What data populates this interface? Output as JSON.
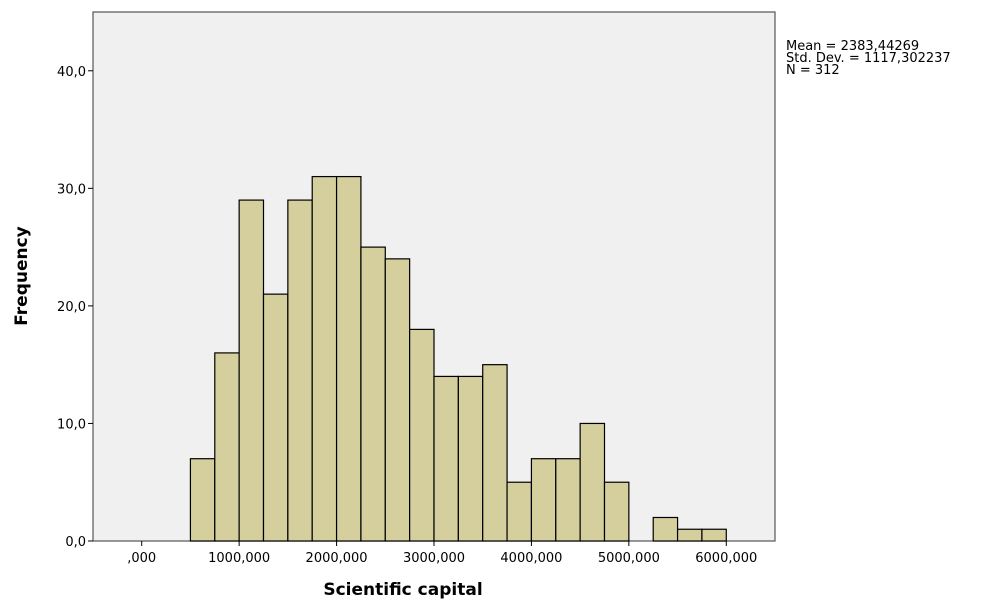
{
  "chart_data": {
    "type": "bar",
    "title": "",
    "xlabel": "Scientific capital",
    "ylabel": "Frequency",
    "bin_width": 250,
    "bins_start": [
      500,
      750,
      1000,
      1250,
      1500,
      1750,
      2000,
      2250,
      2500,
      2750,
      3000,
      3250,
      3500,
      3750,
      4000,
      4250,
      4500,
      4750,
      5000,
      5250,
      5500,
      5750
    ],
    "values": [
      7,
      16,
      29,
      21,
      29,
      31,
      31,
      25,
      24,
      18,
      14,
      14,
      15,
      5,
      7,
      7,
      10,
      5,
      0,
      2,
      1,
      1
    ],
    "xlim": [
      -500,
      6500
    ],
    "ylim": [
      0,
      45
    ],
    "x_ticks": [
      0,
      1000,
      2000,
      3000,
      4000,
      5000,
      6000
    ],
    "x_tick_labels": [
      ",000",
      "1000,000",
      "2000,000",
      "3000,000",
      "4000,000",
      "5000,000",
      "6000,000"
    ],
    "y_ticks": [
      0,
      10,
      20,
      30,
      40
    ],
    "y_tick_labels": [
      "0,0",
      "10,0",
      "20,0",
      "30,0",
      "40,0"
    ],
    "grid": false,
    "stats": {
      "mean": "Mean = 2383,44269",
      "std": "Std. Dev. = 1117,302237",
      "n": "N = 312"
    },
    "legend_position": "top-right",
    "colors": {
      "bar_fill": "#d4cf9c",
      "bar_stroke": "#000000",
      "plot_background": "#f0f0f0",
      "frame": "#555555"
    }
  }
}
